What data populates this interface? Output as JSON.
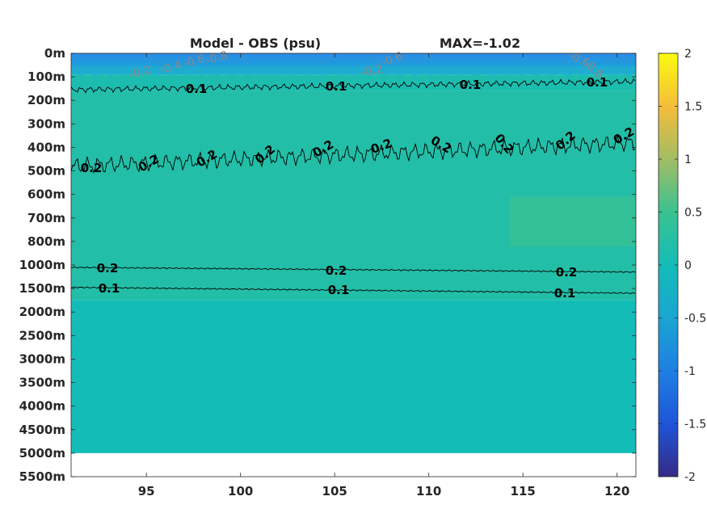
{
  "chart_data": {
    "type": "heatmap",
    "title": "Model - OBS (psu)",
    "annotation": "MAX=-1.02",
    "xlabel": "",
    "ylabel": "",
    "xlim": [
      91,
      121
    ],
    "x_ticks": [
      95,
      100,
      105,
      110,
      115,
      120
    ],
    "y_tick_labels": [
      "0m",
      "100m",
      "200m",
      "300m",
      "400m",
      "500m",
      "600m",
      "700m",
      "800m",
      "1000m",
      "1500m",
      "2000m",
      "2500m",
      "3000m",
      "3500m",
      "4000m",
      "4500m",
      "5000m",
      "5500m"
    ],
    "colorbar": {
      "colormap": "parula",
      "clim": [
        -2,
        2
      ],
      "ticks": [
        "2",
        "1.5",
        "1",
        "0.5",
        "0",
        "-0.5",
        "-1",
        "-1.5",
        "-2"
      ]
    },
    "layers": [
      {
        "from_level": 0,
        "to_level": 0.9,
        "value": -0.6
      },
      {
        "from_level": 0.9,
        "to_level": 1.6,
        "value": 0.1
      },
      {
        "from_level": 1.6,
        "to_level": 10.5,
        "value": 0.2
      },
      {
        "from_level": 10.5,
        "to_level": 17,
        "value": 0.0
      }
    ],
    "contours": [
      {
        "value": 0.1,
        "labels": [
          "0.1",
          "0.1",
          "0.1",
          "0.1"
        ],
        "at_x": [
          98,
          105,
          112,
          119.5
        ]
      },
      {
        "value": 0.2,
        "labels": [
          "0.2",
          "0.2",
          "0.2",
          "0.2",
          "0.2",
          "0.2",
          "0.2",
          "0.2",
          "0.2",
          "0.2",
          "0.2"
        ]
      },
      {
        "value": 0.2,
        "labels": [
          "0.2",
          "0.2",
          "0.2"
        ]
      },
      {
        "value": 0.1,
        "labels": [
          "0.1",
          "0.1",
          "0.1"
        ]
      }
    ],
    "negative_contour_labels": [
      "-0.2",
      "-0.4",
      "-0.6",
      "-0.8",
      "-0.2",
      "-0.6",
      "-0.6",
      "-0.6"
    ]
  }
}
